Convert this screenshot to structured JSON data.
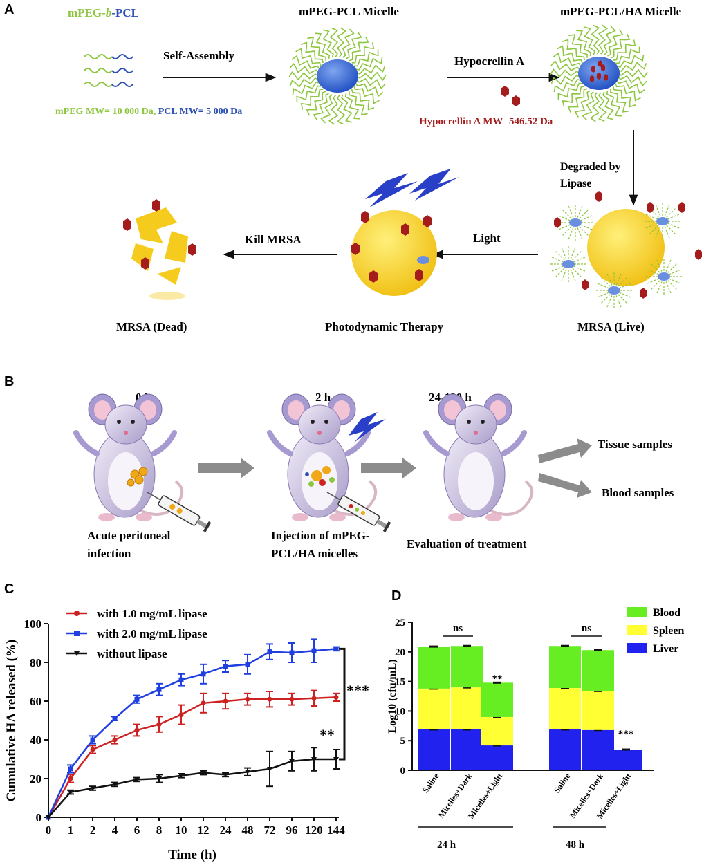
{
  "panels": {
    "a": "A",
    "b": "B",
    "c": "C",
    "d": "D"
  },
  "scheme": {
    "copolymer_parts": [
      "mPEG-",
      "b",
      "-PCL"
    ],
    "mw_peg": "mPEG MW= 10 000 Da, ",
    "mw_pcl": "PCL MW= 5 000 Da",
    "step_self_assembly": "Self-Assembly",
    "micelle": "mPEG-PCL Micelle",
    "step_hypocrellin": "Hypocrellin A",
    "hypocrellin_mw": "Hypocrellin A MW=546.52 Da",
    "loaded_micelle": "mPEG-PCL/HA Micelle",
    "degraded_line1": "Degraded by",
    "degraded_line2": "Lipase",
    "mrsa_live": "MRSA (Live)",
    "step_light": "Light",
    "pdt": "Photodynamic Therapy",
    "step_kill": "Kill MRSA",
    "mrsa_dead": "MRSA (Dead)",
    "colors": {
      "peg": "#8dc63f",
      "pcl": "#2b4fb3",
      "ha": "#a51c1c",
      "bacterium": "#f5cc1e"
    }
  },
  "timeline": {
    "t0": "0 h",
    "t2": "2 h",
    "t3": "24-120 h",
    "cap1_l1": "Acute peritoneal",
    "cap1_l2": "infection",
    "cap2_l1": "Injection of mPEG-",
    "cap2_l2": "PCL/HA micelles",
    "cap3": "Evaluation of treatment",
    "out1": "Tissue samples",
    "out2": "Blood samples"
  },
  "chart_data": [
    {
      "type": "line",
      "panel": "C",
      "xlabel": "Time (h)",
      "ylabel": "Cumulative HA released (%)",
      "x": [
        "0",
        "1",
        "2",
        "4",
        "6",
        "8",
        "10",
        "12",
        "24",
        "48",
        "72",
        "96",
        "120",
        "144"
      ],
      "ylim": [
        0,
        100
      ],
      "yticks": [
        0,
        20,
        40,
        60,
        80,
        100
      ],
      "legend_position": "top-left",
      "series": [
        {
          "name": "with 1.0 mg/mL lipase",
          "color": "#cc2222",
          "values": [
            0,
            20,
            35,
            40,
            45,
            48,
            53,
            59,
            60,
            61,
            61,
            61,
            61.5,
            62
          ],
          "errors": [
            0,
            2,
            2,
            2,
            3,
            4,
            5,
            5,
            4,
            3,
            4,
            3,
            4,
            2
          ]
        },
        {
          "name": "with 2.0 mg/mL lipase",
          "color": "#1f3fe0",
          "values": [
            0,
            25,
            40,
            51,
            61,
            66,
            71,
            74,
            78,
            79,
            85.5,
            85,
            86,
            87
          ],
          "errors": [
            0,
            2,
            2,
            1,
            2,
            3,
            3,
            5,
            3,
            5,
            4,
            5,
            6,
            1
          ]
        },
        {
          "name": "without lipase",
          "color": "#111111",
          "values": [
            0,
            13,
            15,
            17,
            19.5,
            20,
            21.5,
            23,
            22,
            23.5,
            25,
            29,
            30,
            30
          ],
          "errors": [
            0,
            1,
            1,
            1,
            1,
            2,
            1,
            1,
            1,
            2,
            9,
            5,
            6,
            5
          ]
        }
      ],
      "annotations": [
        "***",
        "**"
      ]
    },
    {
      "type": "bar",
      "stacked": true,
      "panel": "D",
      "ylabel": "Log10 (cfu/mL)",
      "ylim": [
        0,
        25
      ],
      "yticks": [
        0,
        5,
        10,
        15,
        20,
        25
      ],
      "categories": [
        "Saline",
        "Micelles+Dark",
        "Micelles+Light",
        "Saline",
        "Micelles+Dark",
        "Micelles+Light"
      ],
      "groups": [
        "24 h",
        "48 h"
      ],
      "legend_position": "top-right",
      "series": [
        {
          "name": "Liver",
          "color": "#2222ee",
          "values": [
            6.9,
            6.9,
            4.2,
            6.9,
            6.8,
            3.5
          ]
        },
        {
          "name": "Spleen",
          "color": "#ffff33",
          "values": [
            6.9,
            7.1,
            4.8,
            7.0,
            6.6,
            0
          ]
        },
        {
          "name": "Blood",
          "color": "#66ee22",
          "values": [
            7.1,
            7.0,
            5.8,
            7.1,
            6.9,
            0
          ]
        }
      ],
      "annotations": {
        "ns": "ns",
        "sig2": "**",
        "sig3": "***"
      }
    }
  ]
}
